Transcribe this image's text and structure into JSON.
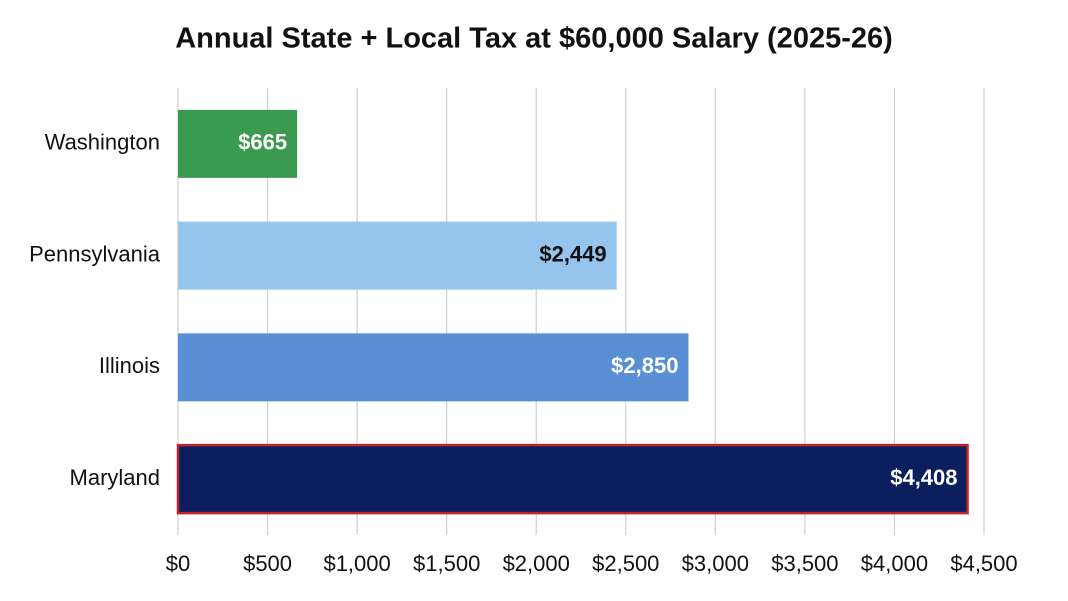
{
  "chart_data": {
    "type": "bar",
    "orientation": "horizontal",
    "title": "Annual State + Local Tax at $60,000 Salary (2025-26)",
    "categories": [
      "Washington",
      "Pennsylvania",
      "Illinois",
      "Maryland"
    ],
    "values": [
      665,
      2449,
      2850,
      4408
    ],
    "value_labels": [
      "$665",
      "$2,449",
      "$2,850",
      "$4,408"
    ],
    "colors": [
      "#3a9a50",
      "#95c4ec",
      "#5b8fd5",
      "#0b1f5e"
    ],
    "value_label_colors": [
      "#ffffff",
      "#111111",
      "#ffffff",
      "#ffffff"
    ],
    "border_colors": [
      null,
      null,
      null,
      "#c4202c"
    ],
    "xlim": [
      0,
      4500
    ],
    "xticks": [
      {
        "value": 0,
        "label": "$0"
      },
      {
        "value": 500,
        "label": "$500"
      },
      {
        "value": 1000,
        "label": "$1,000"
      },
      {
        "value": 1500,
        "label": "$1,500"
      },
      {
        "value": 2000,
        "label": "$2,000"
      },
      {
        "value": 2500,
        "label": "$2,500"
      },
      {
        "value": 3000,
        "label": "$3,000"
      },
      {
        "value": 3500,
        "label": "$3,500"
      },
      {
        "value": 4000,
        "label": "$4,000"
      },
      {
        "value": 4500,
        "label": "$4,500"
      }
    ],
    "grid": true
  }
}
